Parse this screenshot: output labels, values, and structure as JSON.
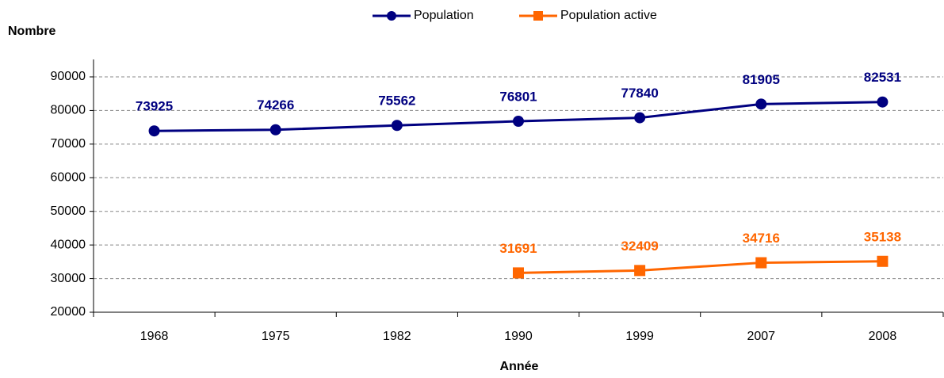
{
  "chart_data": {
    "type": "line",
    "y_axis_label": "Nombre",
    "x_axis_label": "Année",
    "categories": [
      "1968",
      "1975",
      "1982",
      "1990",
      "1999",
      "2007",
      "2008"
    ],
    "series": [
      {
        "name": "Population",
        "color": "#000080",
        "marker": "circle",
        "values": [
          73925,
          74266,
          75562,
          76801,
          77840,
          81905,
          82531
        ]
      },
      {
        "name": "Population active",
        "color": "#ff6600",
        "marker": "square",
        "values": [
          null,
          null,
          null,
          31691,
          32409,
          34716,
          35138
        ]
      }
    ],
    "ylim": [
      20000,
      90000
    ],
    "yticks": [
      20000,
      30000,
      40000,
      50000,
      60000,
      70000,
      80000,
      90000
    ],
    "grid": true,
    "legend": "top"
  }
}
